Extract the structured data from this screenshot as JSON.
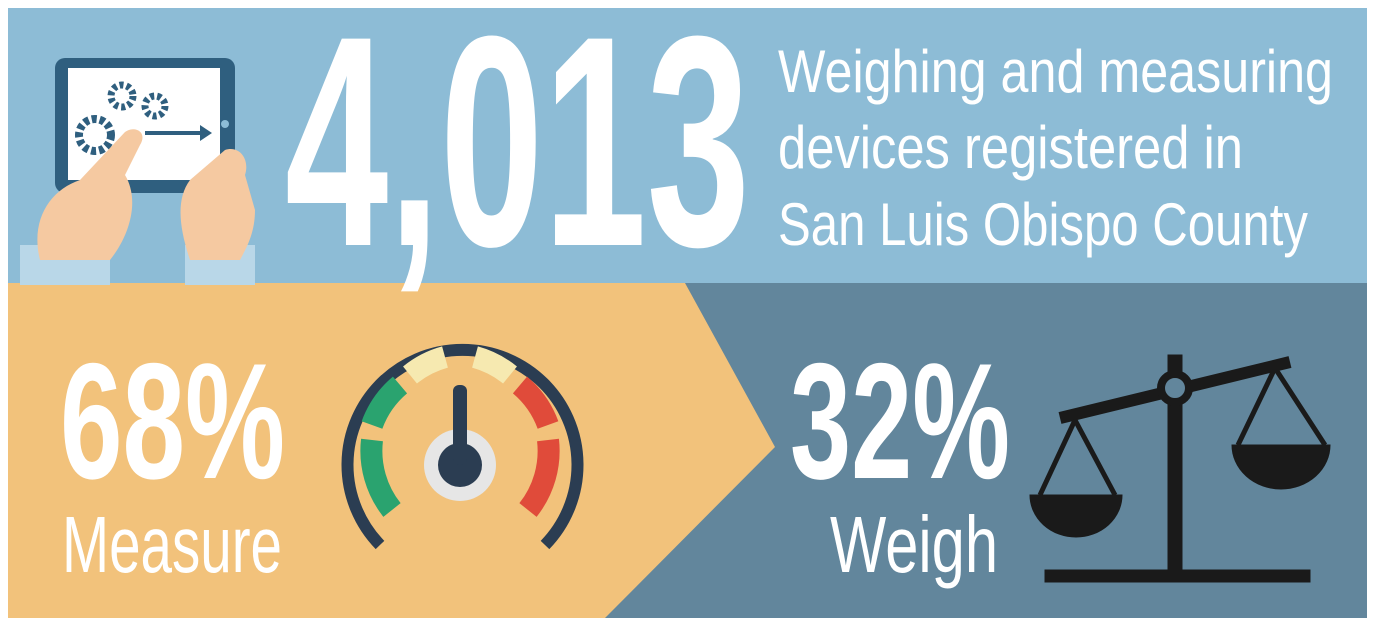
{
  "headline": {
    "value": "4,013",
    "text": [
      "Weighing and measuring",
      "devices registered in",
      "San Luis Obispo County"
    ]
  },
  "panels": [
    {
      "value": "68%",
      "label": "Measure"
    },
    {
      "value": "32%",
      "label": "Weigh"
    }
  ]
}
